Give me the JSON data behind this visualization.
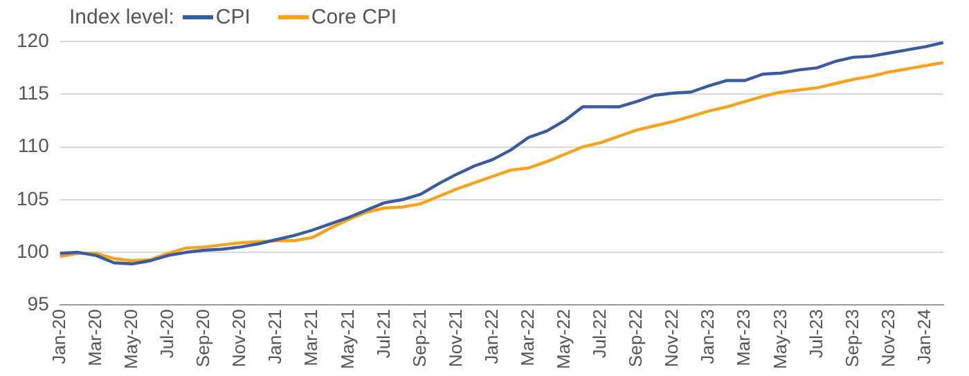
{
  "chart_data": {
    "type": "line",
    "legend_title": "Index level:",
    "legend": "top left",
    "grid": "y",
    "marker": "none",
    "line_style": "solid",
    "categories": [
      "Jan-20",
      null,
      "Mar-20",
      null,
      "May-20",
      null,
      "Jul-20",
      null,
      "Sep-20",
      null,
      "Nov-20",
      null,
      "Jan-21",
      null,
      "Mar-21",
      null,
      "May-21",
      null,
      "Jul-21",
      null,
      "Sep-21",
      null,
      "Nov-21",
      null,
      "Jan-22",
      null,
      "Mar-22",
      null,
      "May-22",
      null,
      "Jul-22",
      null,
      "Sep-22",
      null,
      "Nov-22",
      null,
      "Jan-23",
      null,
      "Mar-23",
      null,
      "May-23",
      null,
      "Jul-23",
      null,
      "Sep-23",
      null,
      "Nov-23",
      null,
      "Jan-24",
      null
    ],
    "ylim": [
      95,
      120
    ],
    "yticks": [
      95,
      100,
      105,
      110,
      115,
      120
    ],
    "series": [
      {
        "name": "CPI",
        "color": "#3a5ba0",
        "values": [
          99.9,
          100.0,
          99.7,
          99.0,
          98.9,
          99.2,
          99.7,
          100.0,
          100.2,
          100.3,
          100.5,
          100.8,
          101.2,
          101.6,
          102.1,
          102.7,
          103.3,
          104.0,
          104.7,
          105.0,
          105.5,
          106.5,
          107.4,
          108.2,
          108.8,
          109.7,
          110.9,
          111.5,
          112.5,
          113.8,
          113.8,
          113.8,
          114.3,
          114.9,
          115.1,
          115.2,
          115.8,
          116.3,
          116.3,
          116.9,
          117.0,
          117.3,
          117.5,
          118.1,
          118.5,
          118.6,
          118.9,
          119.2,
          119.5,
          119.9
        ]
      },
      {
        "name": "Core CPI",
        "color": "#f5a31a",
        "values": [
          99.6,
          99.9,
          99.9,
          99.4,
          99.2,
          99.3,
          99.9,
          100.4,
          100.5,
          100.7,
          100.9,
          101.0,
          101.1,
          101.1,
          101.4,
          102.3,
          103.1,
          103.8,
          104.2,
          104.3,
          104.6,
          105.3,
          106.0,
          106.6,
          107.2,
          107.8,
          108.0,
          108.6,
          109.3,
          110.0,
          110.4,
          111.0,
          111.6,
          112.0,
          112.4,
          112.9,
          113.4,
          113.8,
          114.3,
          114.8,
          115.2,
          115.4,
          115.6,
          116.0,
          116.4,
          116.7,
          117.1,
          117.4,
          117.7,
          118.0
        ]
      }
    ]
  }
}
